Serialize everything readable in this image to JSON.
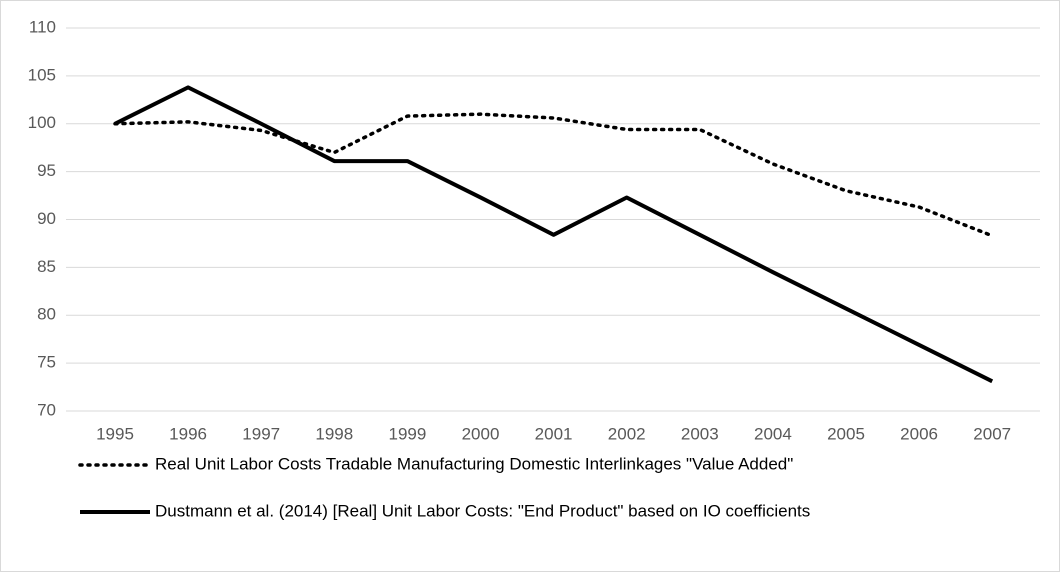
{
  "chart_data": {
    "type": "line",
    "categories": [
      "1995",
      "1996",
      "1997",
      "1998",
      "1999",
      "2000",
      "2001",
      "2002",
      "2003",
      "2004",
      "2005",
      "2006",
      "2007"
    ],
    "series": [
      {
        "name": "Real Unit Labor Costs Tradable Manufacturing Domestic Interlinkages \"Value Added\"",
        "color": "#000000",
        "style": "dotted",
        "values": [
          100,
          100.2,
          99.3,
          97,
          100.8,
          101,
          100.6,
          99.4,
          99.4,
          95.8,
          93,
          91.3,
          88.3
        ]
      },
      {
        "name": "Dustmann et al. (2014) [Real] Unit Labor Costs: \"End Product\" based on IO coefficients",
        "color": "#000000",
        "style": "solid",
        "values": [
          100,
          103.8,
          100,
          96.1,
          96.1,
          92.3,
          88.4,
          92.3,
          88.4,
          84.5,
          80.7,
          76.9,
          73.1
        ]
      }
    ],
    "ylim": [
      70,
      110
    ],
    "yticks": [
      70,
      75,
      80,
      85,
      90,
      95,
      100,
      105,
      110
    ],
    "grid": true,
    "legend": "bottom"
  }
}
